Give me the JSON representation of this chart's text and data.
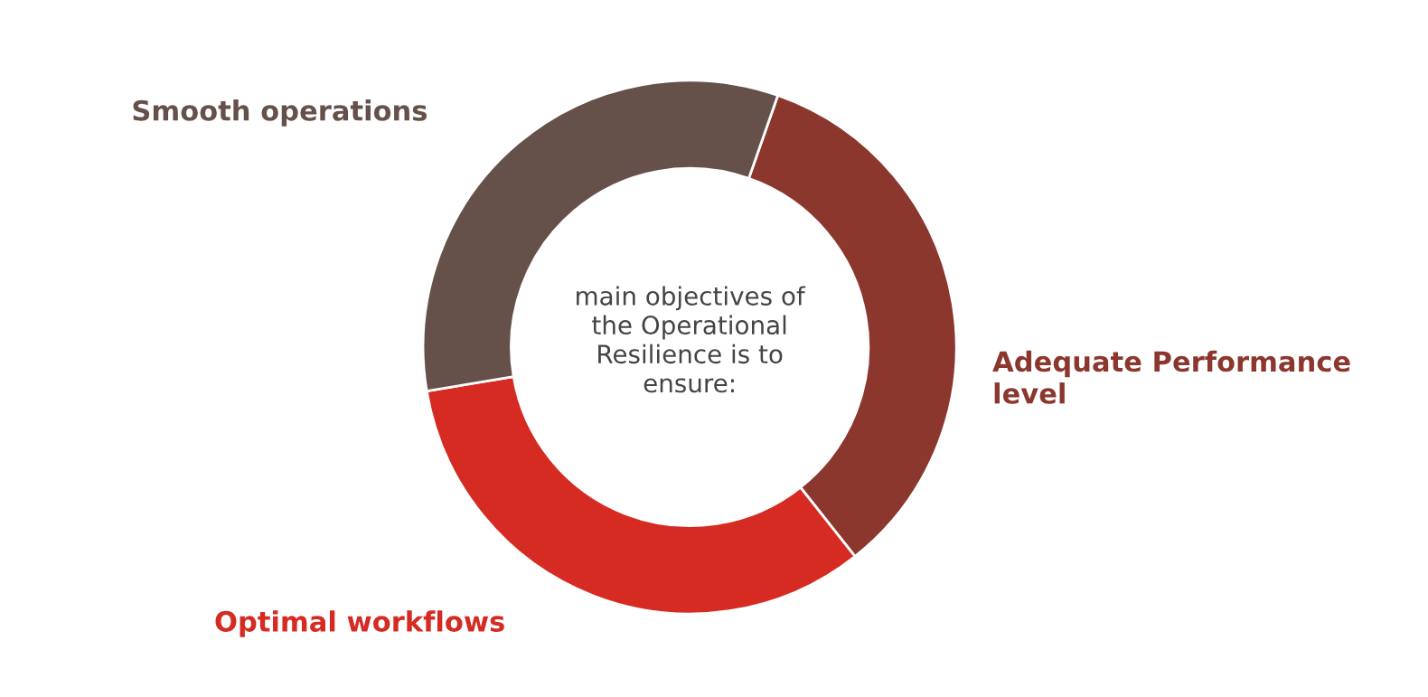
{
  "chart_data": {
    "type": "donut",
    "categories": [
      "Adequate Performance\nlevel",
      "Optimal workflows",
      "Smooth operations"
    ],
    "values": [
      34,
      33,
      33
    ],
    "colors": [
      "#8b372e",
      "#d52b22",
      "#66504a"
    ],
    "annotations": [
      "main objectives of\nthe Operational\nResilience is to\nensure:"
    ],
    "legend": false
  }
}
